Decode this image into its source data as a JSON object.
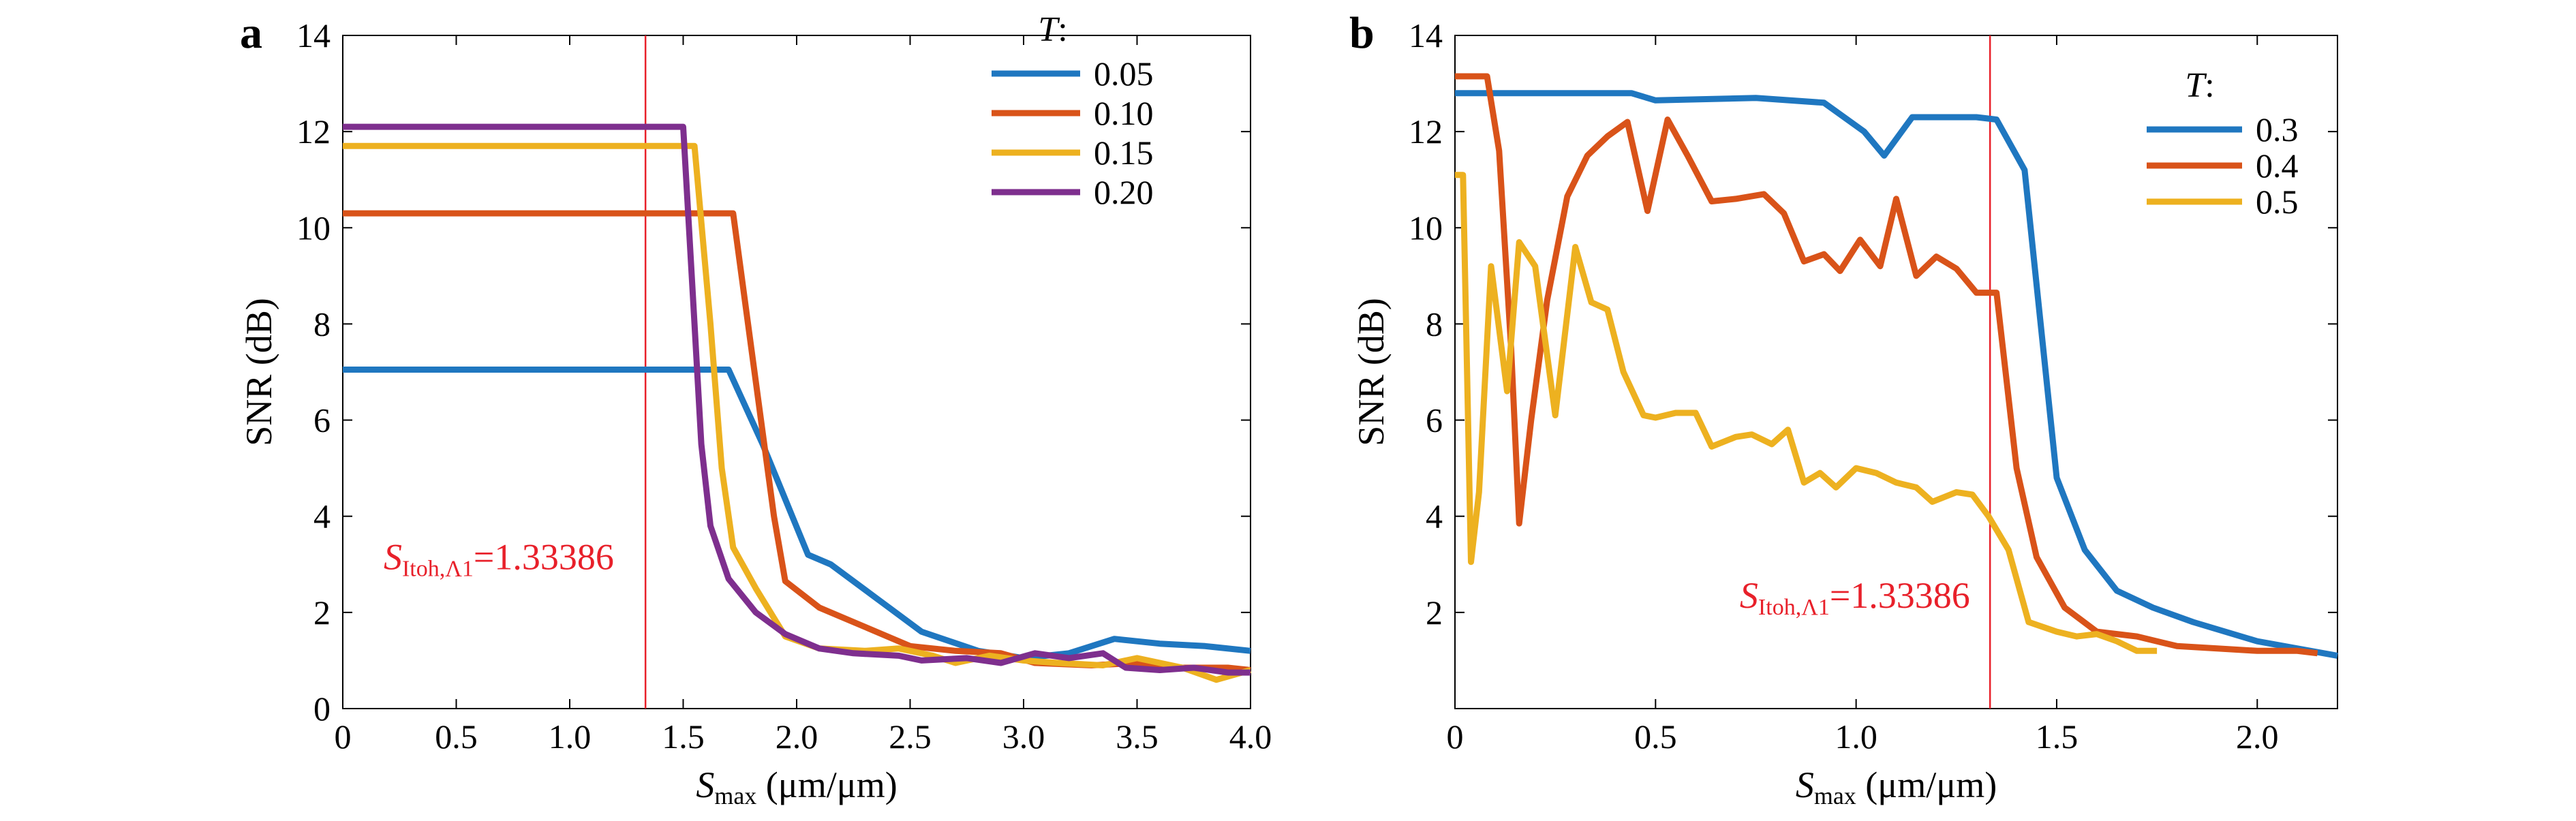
{
  "figure": {
    "panels": [
      {
        "letter": "a",
        "legend_title": "T",
        "legend_title_suffix": ":"
      },
      {
        "letter": "b",
        "legend_title": "T",
        "legend_title_suffix": ":"
      }
    ]
  },
  "chart_data": [
    {
      "type": "line",
      "panel": "a",
      "xlabel_symbol": "S",
      "xlabel_sub": "max",
      "xlabel_unit": " (μm/μm)",
      "ylabel": "SNR (dB)",
      "xlim": [
        0,
        4.0
      ],
      "ylim": [
        0,
        14
      ],
      "x_ticks": [
        "0",
        "0.5",
        "1.0",
        "1.5",
        "2.0",
        "2.5",
        "3.0",
        "3.5",
        "4.0"
      ],
      "y_ticks": [
        "0",
        "2",
        "4",
        "6",
        "8",
        "10",
        "12",
        "14"
      ],
      "grid": false,
      "legend_title": "T:",
      "legend_position": "top-right",
      "vline": {
        "x": 1.33386,
        "color": "#e8202a"
      },
      "annotation": {
        "symbol": "S",
        "sub": "Itoh,Λ1",
        "text": "=1.33386",
        "x": 0.18,
        "y": 2.9
      },
      "series": [
        {
          "name": "0.05",
          "color": "#1f77c0",
          "points": [
            [
              0,
              7.05
            ],
            [
              1.55,
              7.05
            ],
            [
              1.7,
              7.05
            ],
            [
              1.85,
              5.5
            ],
            [
              2.05,
              3.2
            ],
            [
              2.15,
              3.0
            ],
            [
              2.35,
              2.3
            ],
            [
              2.55,
              1.6
            ],
            [
              2.8,
              1.2
            ],
            [
              3.0,
              1.05
            ],
            [
              3.2,
              1.15
            ],
            [
              3.4,
              1.45
            ],
            [
              3.6,
              1.35
            ],
            [
              3.8,
              1.3
            ],
            [
              4.0,
              1.2
            ]
          ]
        },
        {
          "name": "0.10",
          "color": "#d95319",
          "points": [
            [
              0,
              10.3
            ],
            [
              1.6,
              10.3
            ],
            [
              1.72,
              10.3
            ],
            [
              1.8,
              7.5
            ],
            [
              1.9,
              4.0
            ],
            [
              1.95,
              2.65
            ],
            [
              2.1,
              2.1
            ],
            [
              2.3,
              1.7
            ],
            [
              2.5,
              1.3
            ],
            [
              2.7,
              1.2
            ],
            [
              2.9,
              1.15
            ],
            [
              3.05,
              0.95
            ],
            [
              3.3,
              0.9
            ],
            [
              3.5,
              0.95
            ],
            [
              3.7,
              0.85
            ],
            [
              3.9,
              0.85
            ],
            [
              4.0,
              0.8
            ]
          ]
        },
        {
          "name": "0.15",
          "color": "#edb120",
          "points": [
            [
              0,
              11.7
            ],
            [
              1.45,
              11.7
            ],
            [
              1.55,
              11.7
            ],
            [
              1.62,
              8.0
            ],
            [
              1.67,
              5.0
            ],
            [
              1.72,
              3.35
            ],
            [
              1.82,
              2.5
            ],
            [
              1.95,
              1.5
            ],
            [
              2.1,
              1.25
            ],
            [
              2.3,
              1.2
            ],
            [
              2.45,
              1.25
            ],
            [
              2.6,
              1.1
            ],
            [
              2.7,
              0.95
            ],
            [
              2.85,
              1.1
            ],
            [
              3.0,
              1.0
            ],
            [
              3.15,
              0.95
            ],
            [
              3.35,
              0.9
            ],
            [
              3.5,
              1.05
            ],
            [
              3.7,
              0.85
            ],
            [
              3.85,
              0.6
            ],
            [
              4.0,
              0.8
            ]
          ]
        },
        {
          "name": "0.20",
          "color": "#7e2f8e",
          "points": [
            [
              0,
              12.1
            ],
            [
              1.4,
              12.1
            ],
            [
              1.5,
              12.1
            ],
            [
              1.55,
              8.0
            ],
            [
              1.58,
              5.5
            ],
            [
              1.62,
              3.8
            ],
            [
              1.7,
              2.7
            ],
            [
              1.82,
              2.0
            ],
            [
              1.95,
              1.55
            ],
            [
              2.1,
              1.25
            ],
            [
              2.25,
              1.15
            ],
            [
              2.45,
              1.1
            ],
            [
              2.55,
              1.0
            ],
            [
              2.75,
              1.05
            ],
            [
              2.9,
              0.95
            ],
            [
              3.05,
              1.15
            ],
            [
              3.2,
              1.05
            ],
            [
              3.35,
              1.15
            ],
            [
              3.45,
              0.85
            ],
            [
              3.6,
              0.8
            ],
            [
              3.75,
              0.85
            ],
            [
              3.9,
              0.75
            ],
            [
              4.0,
              0.75
            ]
          ]
        }
      ]
    },
    {
      "type": "line",
      "panel": "b",
      "xlabel_symbol": "S",
      "xlabel_sub": "max",
      "xlabel_unit": " (μm/μm)",
      "ylabel": "SNR (dB)",
      "xlim": [
        0,
        2.2
      ],
      "ylim": [
        0,
        14
      ],
      "x_ticks": [
        "0",
        "0.5",
        "1.0",
        "1.5",
        "2.0"
      ],
      "y_ticks": [
        "2",
        "4",
        "6",
        "8",
        "10",
        "12",
        "14"
      ],
      "grid": false,
      "legend_title": "T:",
      "legend_position": "top-right",
      "vline": {
        "x": 1.33386,
        "color": "#e8202a"
      },
      "annotation": {
        "symbol": "S",
        "sub": "Itoh,Λ1",
        "text": "=1.33386",
        "x": 0.71,
        "y": 2.1
      },
      "series": [
        {
          "name": "0.3",
          "color": "#1f77c0",
          "points": [
            [
              0,
              12.8
            ],
            [
              0.44,
              12.8
            ],
            [
              0.5,
              12.65
            ],
            [
              0.75,
              12.7
            ],
            [
              0.92,
              12.6
            ],
            [
              1.02,
              12.0
            ],
            [
              1.07,
              11.5
            ],
            [
              1.14,
              12.3
            ],
            [
              1.3,
              12.3
            ],
            [
              1.35,
              12.25
            ],
            [
              1.42,
              11.2
            ],
            [
              1.5,
              4.8
            ],
            [
              1.57,
              3.3
            ],
            [
              1.65,
              2.45
            ],
            [
              1.74,
              2.1
            ],
            [
              1.84,
              1.8
            ],
            [
              2.0,
              1.4
            ],
            [
              2.1,
              1.25
            ],
            [
              2.2,
              1.1
            ]
          ]
        },
        {
          "name": "0.4",
          "color": "#d95319",
          "points": [
            [
              0,
              13.15
            ],
            [
              0.08,
              13.15
            ],
            [
              0.11,
              11.6
            ],
            [
              0.14,
              7.5
            ],
            [
              0.16,
              3.85
            ],
            [
              0.19,
              6.0
            ],
            [
              0.23,
              8.5
            ],
            [
              0.28,
              10.65
            ],
            [
              0.33,
              11.5
            ],
            [
              0.38,
              11.9
            ],
            [
              0.43,
              12.2
            ],
            [
              0.48,
              10.35
            ],
            [
              0.53,
              12.25
            ],
            [
              0.58,
              11.5
            ],
            [
              0.64,
              10.55
            ],
            [
              0.7,
              10.6
            ],
            [
              0.77,
              10.7
            ],
            [
              0.82,
              10.3
            ],
            [
              0.87,
              9.3
            ],
            [
              0.92,
              9.45
            ],
            [
              0.96,
              9.1
            ],
            [
              1.01,
              9.75
            ],
            [
              1.06,
              9.2
            ],
            [
              1.1,
              10.6
            ],
            [
              1.15,
              9.0
            ],
            [
              1.2,
              9.4
            ],
            [
              1.25,
              9.15
            ],
            [
              1.3,
              8.65
            ],
            [
              1.35,
              8.65
            ],
            [
              1.4,
              5.0
            ],
            [
              1.45,
              3.15
            ],
            [
              1.52,
              2.1
            ],
            [
              1.6,
              1.6
            ],
            [
              1.7,
              1.5
            ],
            [
              1.8,
              1.3
            ],
            [
              1.9,
              1.25
            ],
            [
              2.0,
              1.2
            ],
            [
              2.1,
              1.2
            ],
            [
              2.15,
              1.15
            ]
          ]
        },
        {
          "name": "0.5",
          "color": "#edb120",
          "points": [
            [
              0,
              11.1
            ],
            [
              0.02,
              11.1
            ],
            [
              0.04,
              3.05
            ],
            [
              0.06,
              4.5
            ],
            [
              0.09,
              9.2
            ],
            [
              0.13,
              6.6
            ],
            [
              0.16,
              9.7
            ],
            [
              0.2,
              9.2
            ],
            [
              0.25,
              6.1
            ],
            [
              0.3,
              9.6
            ],
            [
              0.34,
              8.45
            ],
            [
              0.38,
              8.3
            ],
            [
              0.42,
              7.0
            ],
            [
              0.47,
              6.1
            ],
            [
              0.5,
              6.05
            ],
            [
              0.55,
              6.15
            ],
            [
              0.6,
              6.15
            ],
            [
              0.64,
              5.45
            ],
            [
              0.7,
              5.65
            ],
            [
              0.74,
              5.7
            ],
            [
              0.79,
              5.5
            ],
            [
              0.83,
              5.8
            ],
            [
              0.87,
              4.7
            ],
            [
              0.91,
              4.9
            ],
            [
              0.95,
              4.6
            ],
            [
              1.0,
              5.0
            ],
            [
              1.05,
              4.9
            ],
            [
              1.1,
              4.7
            ],
            [
              1.15,
              4.6
            ],
            [
              1.19,
              4.3
            ],
            [
              1.25,
              4.5
            ],
            [
              1.29,
              4.45
            ],
            [
              1.33,
              4.0
            ],
            [
              1.38,
              3.3
            ],
            [
              1.43,
              1.8
            ],
            [
              1.5,
              1.6
            ],
            [
              1.55,
              1.5
            ],
            [
              1.6,
              1.55
            ],
            [
              1.65,
              1.4
            ],
            [
              1.7,
              1.2
            ],
            [
              1.75,
              1.2
            ]
          ]
        }
      ]
    }
  ]
}
